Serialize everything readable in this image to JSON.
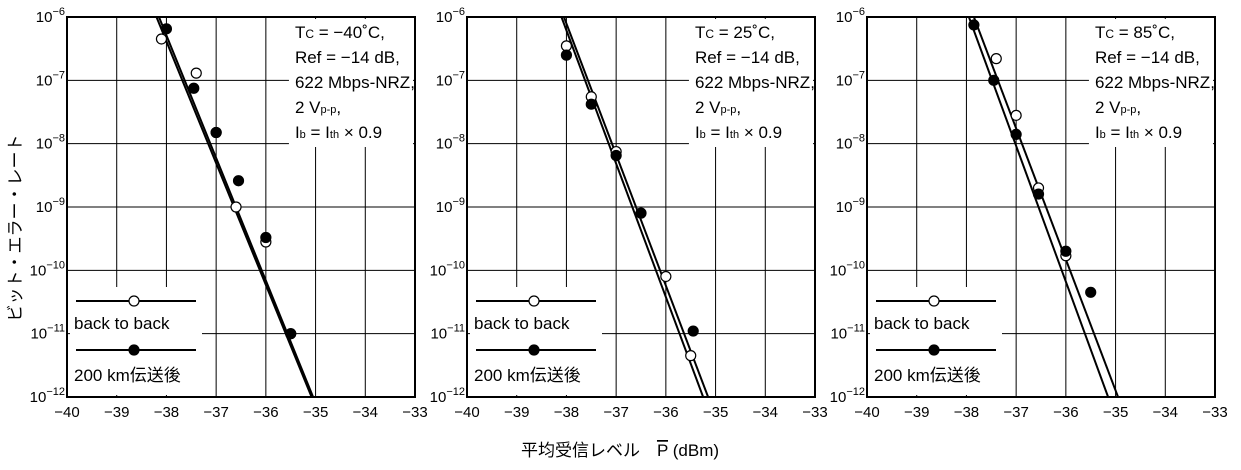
{
  "figure": {
    "ylabel": "ビット・エラー・レート",
    "xlabel": "平均受信レベル　P (dBm)",
    "colors": {
      "ink": "#000000",
      "background": "#ffffff"
    }
  },
  "chart_data": [
    {
      "type": "scatter",
      "panel": "left",
      "xlim": [
        -40,
        -33
      ],
      "ylim_exponent": [
        -12,
        -6
      ],
      "y_scale": "log",
      "grid": true,
      "x_ticks": [
        "−40",
        "−39",
        "−38",
        "−37",
        "−36",
        "−35",
        "−34",
        "−33"
      ],
      "annotation": {
        "tc": "Tc = −40˚C,",
        "ref": "Ref = −14 dB,",
        "rate": "622 Mbps-NRZ,",
        "vpp": "2 Vp-p,",
        "ib": "Ib = Ith × 0.9"
      },
      "legend": {
        "placement": "bottom-left",
        "entries": [
          "back to back",
          "200 km伝送後"
        ]
      },
      "series": [
        {
          "name": "back to back",
          "marker": "open-circle",
          "points": [
            [
              -38.1,
              4.5e-07
            ],
            [
              -37.4,
              1.3e-07
            ],
            [
              -37.0,
              1.5e-08
            ],
            [
              -36.6,
              1e-09
            ],
            [
              -36.0,
              2.8e-10
            ],
            [
              -35.5,
              1e-11
            ]
          ]
        },
        {
          "name": "200 km伝送後",
          "marker": "filled-circle",
          "points": [
            [
              -38.0,
              6.5e-07
            ],
            [
              -37.45,
              7.5e-08
            ],
            [
              -37.0,
              1.5e-08
            ],
            [
              -36.55,
              2.6e-09
            ],
            [
              -36.0,
              3.3e-10
            ],
            [
              -35.5,
              1e-11
            ]
          ]
        }
      ],
      "fit_lines": [
        {
          "name": "back to back",
          "from": [
            -38.2,
            1e-06
          ],
          "to": [
            -35.08,
            1e-12
          ]
        },
        {
          "name": "200 km伝送後",
          "from": [
            -38.15,
            1e-06
          ],
          "to": [
            -35.05,
            1e-12
          ]
        }
      ]
    },
    {
      "type": "scatter",
      "panel": "middle",
      "xlim": [
        -40,
        -33
      ],
      "ylim_exponent": [
        -12,
        -6
      ],
      "y_scale": "log",
      "grid": true,
      "x_ticks": [
        "−40",
        "−39",
        "−38",
        "−37",
        "−36",
        "−35",
        "−34",
        "−33"
      ],
      "annotation": {
        "tc": "Tc = 25˚C,",
        "ref": "Ref = −14 dB,",
        "rate": "622 Mbps-NRZ,",
        "vpp": "2 Vp-p,",
        "ib": "Ib = Ith × 0.9"
      },
      "legend": {
        "placement": "bottom-left",
        "entries": [
          "back to back",
          "200 km伝送後"
        ]
      },
      "series": [
        {
          "name": "back to back",
          "marker": "open-circle",
          "points": [
            [
              -38.0,
              3.5e-07
            ],
            [
              -37.5,
              5.5e-08
            ],
            [
              -37.0,
              7.5e-09
            ],
            [
              -36.0,
              8e-11
            ],
            [
              -35.5,
              4.5e-12
            ]
          ]
        },
        {
          "name": "200 km伝送後",
          "marker": "filled-circle",
          "points": [
            [
              -38.0,
              2.5e-07
            ],
            [
              -37.5,
              4.2e-08
            ],
            [
              -37.0,
              6.5e-09
            ],
            [
              -36.5,
              8e-10
            ],
            [
              -35.45,
              1.1e-11
            ]
          ]
        }
      ],
      "fit_lines": [
        {
          "name": "back to back",
          "from": [
            -38.1,
            1e-06
          ],
          "to": [
            -35.25,
            1e-12
          ]
        },
        {
          "name": "200 km伝送後",
          "from": [
            -38.05,
            1e-06
          ],
          "to": [
            -35.15,
            1e-12
          ]
        }
      ]
    },
    {
      "type": "scatter",
      "panel": "right",
      "xlim": [
        -40,
        -33
      ],
      "ylim_exponent": [
        -12,
        -6
      ],
      "y_scale": "log",
      "grid": true,
      "x_ticks": [
        "−40",
        "−39",
        "−38",
        "−37",
        "−36",
        "−35",
        "−34",
        "−33"
      ],
      "annotation": {
        "tc": "Tc = 85˚C,",
        "ref": "Ref = −14 dB,",
        "rate": "622 Mbps-NRZ,",
        "vpp": "2 Vp-p,",
        "ib": "Ib = Ith × 0.9"
      },
      "legend": {
        "placement": "bottom-left",
        "entries": [
          "back to back",
          "200 km伝送後"
        ]
      },
      "series": [
        {
          "name": "back to back",
          "marker": "open-circle",
          "points": [
            [
              -37.4,
              2.2e-07
            ],
            [
              -37.0,
              2.8e-08
            ],
            [
              -36.55,
              2e-09
            ],
            [
              -36.0,
              1.7e-10
            ]
          ]
        },
        {
          "name": "200 km伝送後",
          "marker": "filled-circle",
          "points": [
            [
              -37.85,
              7.5e-07
            ],
            [
              -37.45,
              1e-07
            ],
            [
              -37.0,
              1.4e-08
            ],
            [
              -36.55,
              1.6e-09
            ],
            [
              -36.0,
              2e-10
            ],
            [
              -35.5,
              4.5e-11
            ]
          ]
        }
      ],
      "fit_lines": [
        {
          "name": "back to back",
          "from": [
            -37.95,
            1e-06
          ],
          "to": [
            -35.15,
            1e-12
          ]
        },
        {
          "name": "200 km伝送後",
          "from": [
            -37.85,
            1e-06
          ],
          "to": [
            -34.95,
            1e-12
          ]
        }
      ]
    }
  ]
}
